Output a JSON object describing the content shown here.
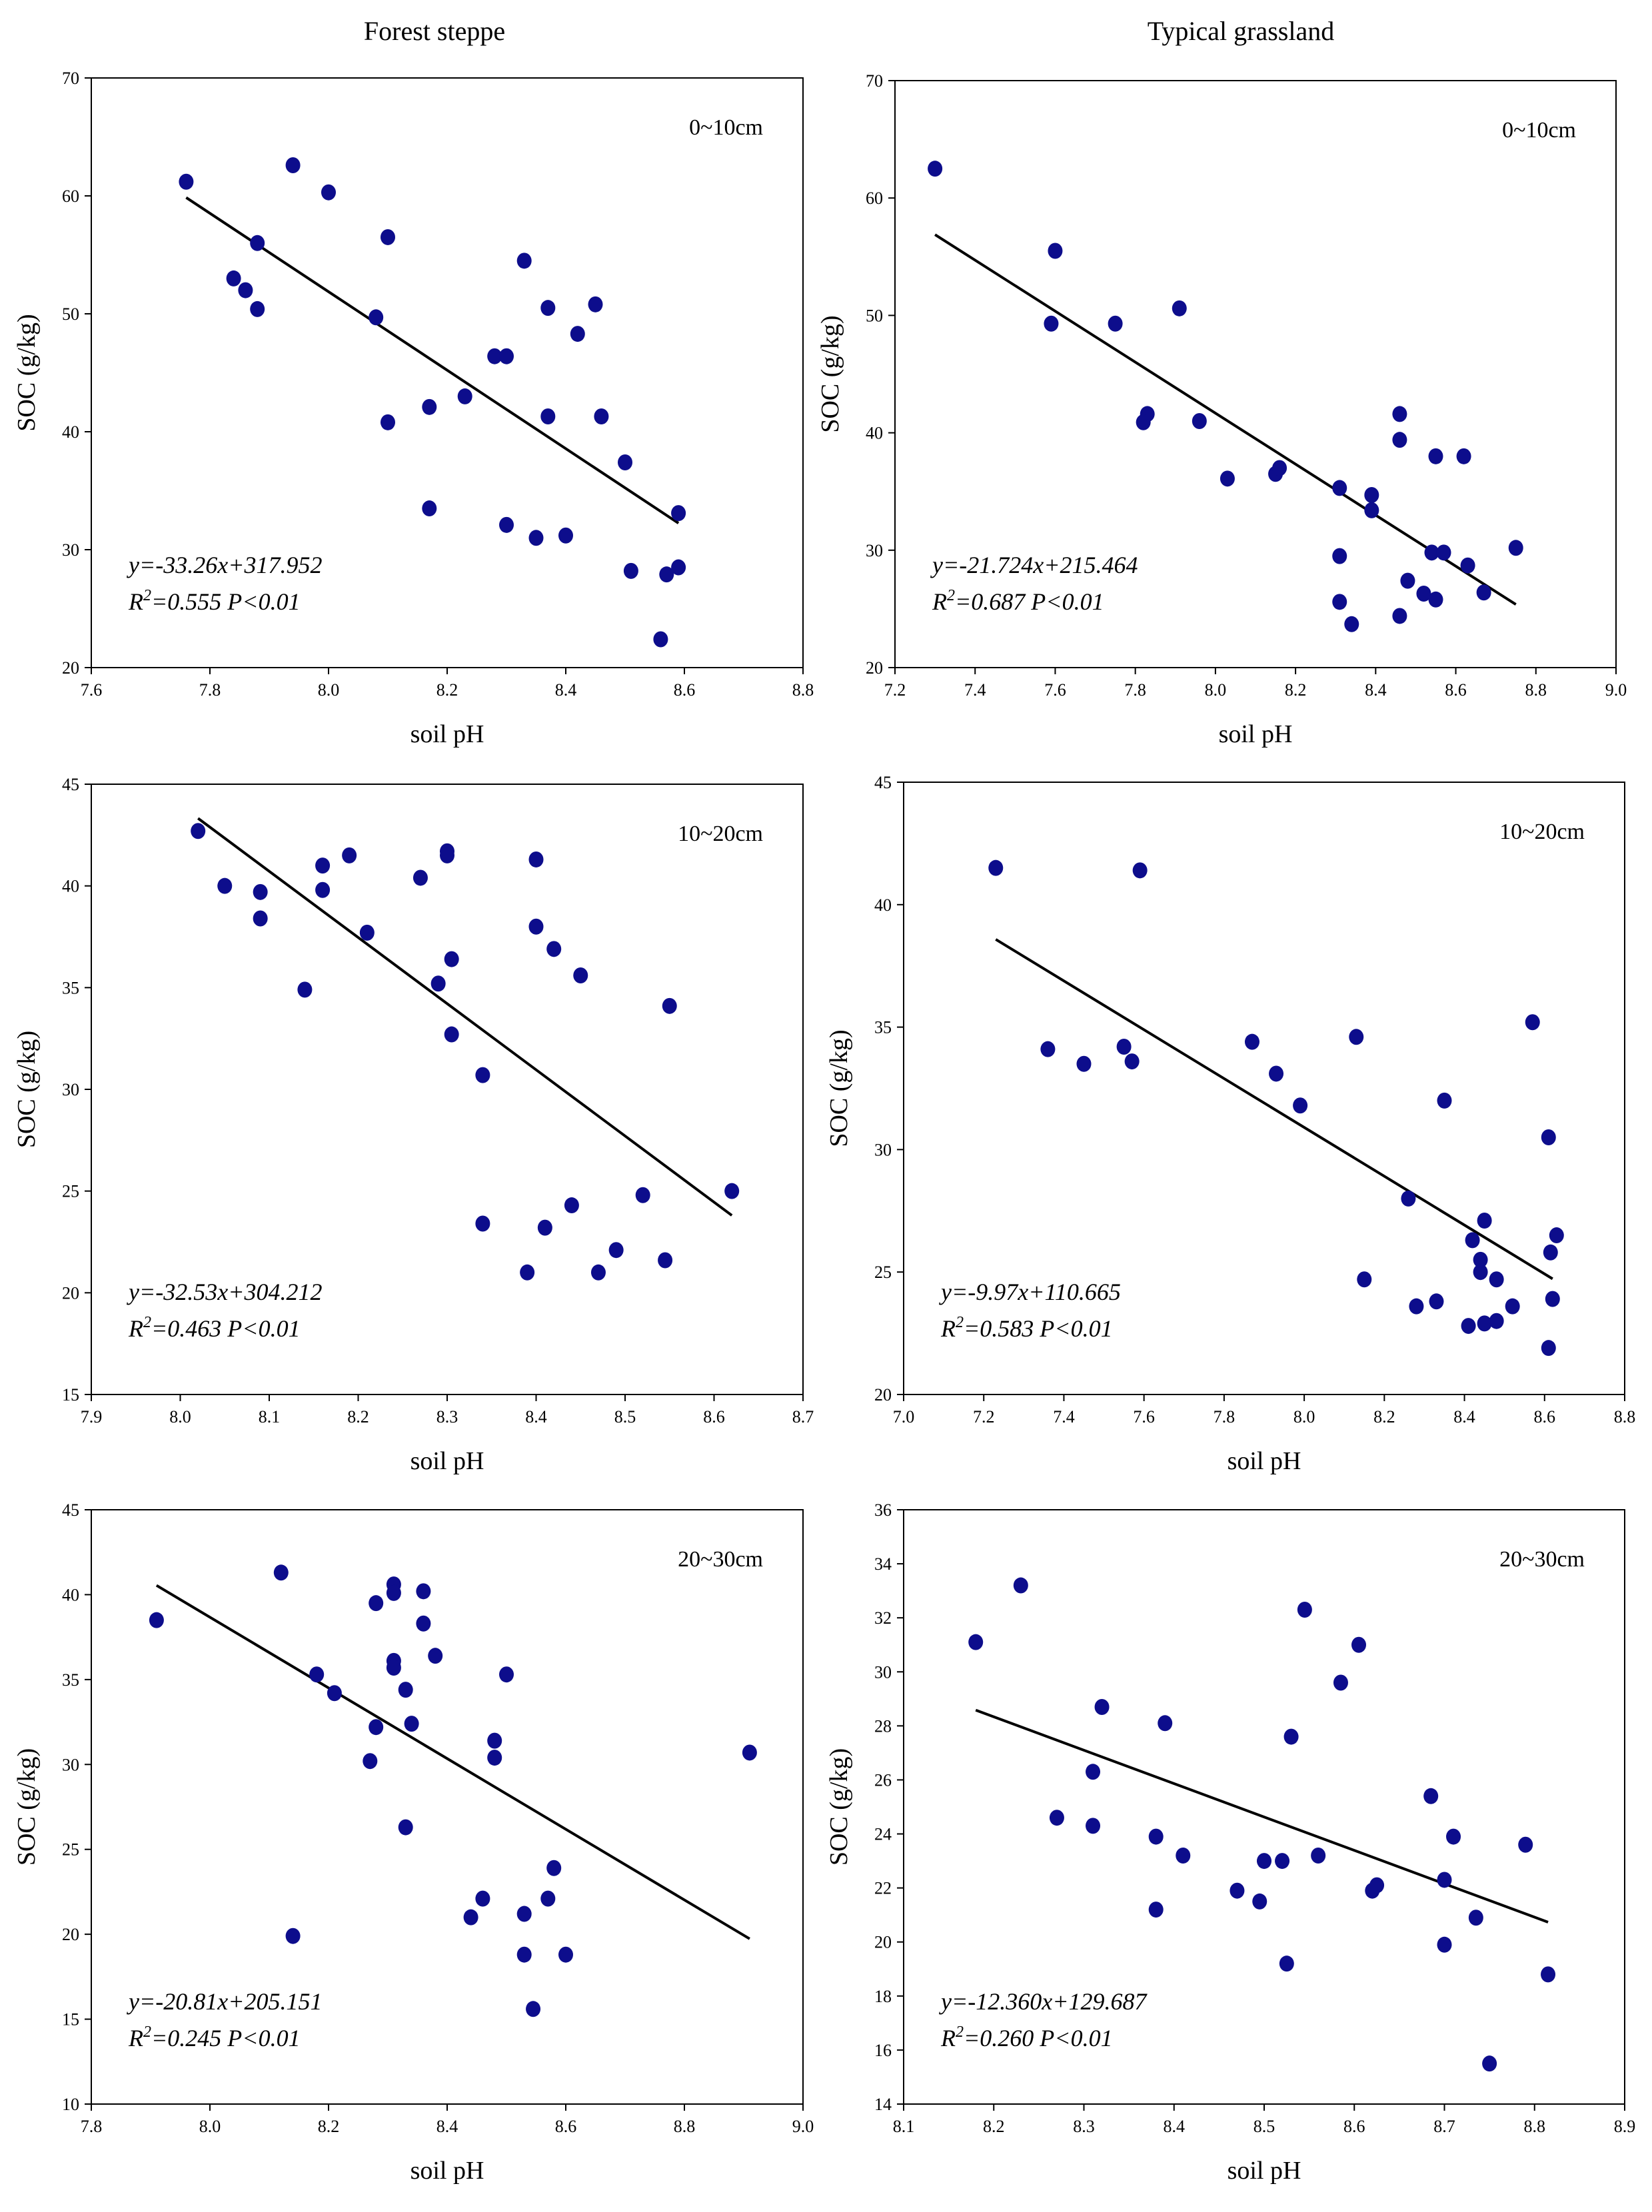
{
  "column_titles": [
    "Forest steppe",
    "Typical grassland"
  ],
  "chart_data": [
    {
      "type": "scatter",
      "title": "Forest steppe",
      "depth": "0~10cm",
      "xlabel": "soil pH",
      "ylabel": "SOC (g/kg)",
      "xlim": [
        7.6,
        8.8
      ],
      "ylim": [
        20,
        70
      ],
      "xticks": [
        "7.6",
        "7.8",
        "8.0",
        "8.2",
        "8.4",
        "8.6",
        "8.8"
      ],
      "yticks": [
        "20",
        "30",
        "40",
        "50",
        "60",
        "70"
      ],
      "equation": "y=-33.26x+317.952",
      "r2_value": "=0.555 P<0.01",
      "fit": {
        "slope": -33.26,
        "intercept": 317.952,
        "x_range": [
          7.76,
          8.59
        ]
      },
      "points": [
        [
          7.76,
          61.2
        ],
        [
          7.84,
          53
        ],
        [
          7.86,
          52
        ],
        [
          7.88,
          50.4
        ],
        [
          7.88,
          56
        ],
        [
          7.94,
          62.6
        ],
        [
          8.0,
          60.3
        ],
        [
          8.08,
          49.7
        ],
        [
          8.1,
          56.5
        ],
        [
          8.1,
          40.8
        ],
        [
          8.17,
          42.1
        ],
        [
          8.17,
          33.5
        ],
        [
          8.23,
          43
        ],
        [
          8.28,
          46.4
        ],
        [
          8.3,
          46.4
        ],
        [
          8.33,
          54.5
        ],
        [
          8.37,
          50.5
        ],
        [
          8.37,
          41.3
        ],
        [
          8.3,
          32.1
        ],
        [
          8.35,
          31
        ],
        [
          8.4,
          31.2
        ],
        [
          8.42,
          48.3
        ],
        [
          8.45,
          50.8
        ],
        [
          8.46,
          41.3
        ],
        [
          8.5,
          37.4
        ],
        [
          8.51,
          28.2
        ],
        [
          8.56,
          22.4
        ],
        [
          8.57,
          27.9
        ],
        [
          8.59,
          33.1
        ],
        [
          8.59,
          28.5
        ]
      ]
    },
    {
      "type": "scatter",
      "title": "Typical grassland",
      "depth": "0~10cm",
      "xlabel": "soil pH",
      "ylabel": "SOC (g/kg)",
      "xlim": [
        7.2,
        9.0
      ],
      "ylim": [
        20,
        70
      ],
      "xticks": [
        "7.2",
        "7.4",
        "7.6",
        "7.8",
        "8.0",
        "8.2",
        "8.4",
        "8.6",
        "8.8",
        "9.0"
      ],
      "yticks": [
        "20",
        "30",
        "40",
        "50",
        "60",
        "70"
      ],
      "equation": "y=-21.724x+215.464",
      "r2_value": "=0.687 P<0.01",
      "fit": {
        "slope": -21.724,
        "intercept": 215.464,
        "x_range": [
          7.3,
          8.75
        ]
      },
      "points": [
        [
          7.3,
          62.5
        ],
        [
          7.6,
          55.5
        ],
        [
          7.59,
          49.3
        ],
        [
          7.75,
          49.3
        ],
        [
          7.91,
          50.6
        ],
        [
          7.83,
          41.6
        ],
        [
          7.82,
          40.9
        ],
        [
          7.96,
          41
        ],
        [
          8.03,
          36.1
        ],
        [
          8.15,
          36.5
        ],
        [
          8.16,
          37
        ],
        [
          8.31,
          35.3
        ],
        [
          8.31,
          29.5
        ],
        [
          8.31,
          25.6
        ],
        [
          8.34,
          23.7
        ],
        [
          8.39,
          34.7
        ],
        [
          8.39,
          33.4
        ],
        [
          8.46,
          41.6
        ],
        [
          8.46,
          39.4
        ],
        [
          8.46,
          24.4
        ],
        [
          8.48,
          27.4
        ],
        [
          8.52,
          26.3
        ],
        [
          8.54,
          29.8
        ],
        [
          8.55,
          38
        ],
        [
          8.55,
          25.8
        ],
        [
          8.57,
          29.8
        ],
        [
          8.62,
          38
        ],
        [
          8.63,
          28.7
        ],
        [
          8.67,
          26.4
        ],
        [
          8.75,
          30.2
        ]
      ]
    },
    {
      "type": "scatter",
      "title": "Forest steppe",
      "depth": "10~20cm",
      "xlabel": "soil pH",
      "ylabel": "SOC (g/kg)",
      "xlim": [
        7.9,
        8.7
      ],
      "ylim": [
        15,
        45
      ],
      "xticks": [
        "7.9",
        "8.0",
        "8.1",
        "8.2",
        "8.3",
        "8.4",
        "8.5",
        "8.6",
        "8.7"
      ],
      "yticks": [
        "15",
        "20",
        "25",
        "30",
        "35",
        "40",
        "45"
      ],
      "equation": "y=-32.53x+304.212",
      "r2_value": "=0.463 P<0.01",
      "fit": {
        "slope": -32.53,
        "intercept": 304.212,
        "x_range": [
          8.02,
          8.62
        ]
      },
      "points": [
        [
          8.02,
          42.7
        ],
        [
          8.05,
          40
        ],
        [
          8.09,
          39.7
        ],
        [
          8.09,
          38.4
        ],
        [
          8.14,
          34.9
        ],
        [
          8.16,
          41
        ],
        [
          8.16,
          39.8
        ],
        [
          8.19,
          41.5
        ],
        [
          8.21,
          37.7
        ],
        [
          8.27,
          40.4
        ],
        [
          8.3,
          41.7
        ],
        [
          8.3,
          41.5
        ],
        [
          8.29,
          35.2
        ],
        [
          8.305,
          36.4
        ],
        [
          8.305,
          32.7
        ],
        [
          8.34,
          30.7
        ],
        [
          8.34,
          23.4
        ],
        [
          8.39,
          21
        ],
        [
          8.4,
          41.3
        ],
        [
          8.4,
          38
        ],
        [
          8.42,
          36.9
        ],
        [
          8.41,
          23.2
        ],
        [
          8.44,
          24.3
        ],
        [
          8.45,
          35.6
        ],
        [
          8.47,
          21
        ],
        [
          8.49,
          22.1
        ],
        [
          8.52,
          24.8
        ],
        [
          8.545,
          21.6
        ],
        [
          8.55,
          34.1
        ],
        [
          8.62,
          25
        ]
      ]
    },
    {
      "type": "scatter",
      "title": "Typical grassland",
      "depth": "10~20cm",
      "xlabel": "soil pH",
      "ylabel": "SOC (g/kg)",
      "xlim": [
        7.0,
        8.8
      ],
      "ylim": [
        20,
        45
      ],
      "xticks": [
        "7.0",
        "7.2",
        "7.4",
        "7.6",
        "7.8",
        "8.0",
        "8.2",
        "8.4",
        "8.6",
        "8.8"
      ],
      "yticks": [
        "20",
        "25",
        "30",
        "35",
        "40",
        "45"
      ],
      "equation": "y=-9.97x+110.665",
      "r2_value": "=0.583 P<0.01",
      "fit": {
        "slope": -9.97,
        "intercept": 110.665,
        "x_range": [
          7.23,
          8.62
        ]
      },
      "points": [
        [
          7.23,
          41.5
        ],
        [
          7.59,
          41.4
        ],
        [
          7.36,
          34.1
        ],
        [
          7.45,
          33.5
        ],
        [
          7.55,
          34.2
        ],
        [
          7.57,
          33.6
        ],
        [
          7.87,
          34.4
        ],
        [
          7.93,
          33.1
        ],
        [
          7.99,
          31.8
        ],
        [
          8.13,
          34.6
        ],
        [
          8.15,
          24.7
        ],
        [
          8.26,
          28
        ],
        [
          8.28,
          23.6
        ],
        [
          8.33,
          23.8
        ],
        [
          8.35,
          32
        ],
        [
          8.41,
          22.8
        ],
        [
          8.42,
          26.3
        ],
        [
          8.44,
          25
        ],
        [
          8.44,
          25.5
        ],
        [
          8.45,
          27.1
        ],
        [
          8.45,
          22.9
        ],
        [
          8.48,
          24.7
        ],
        [
          8.48,
          23
        ],
        [
          8.52,
          23.6
        ],
        [
          8.57,
          35.2
        ],
        [
          8.61,
          30.5
        ],
        [
          8.615,
          25.8
        ],
        [
          8.62,
          23.9
        ],
        [
          8.63,
          26.5
        ],
        [
          8.61,
          21.9
        ]
      ]
    },
    {
      "type": "scatter",
      "title": "Forest steppe",
      "depth": "20~30cm",
      "xlabel": "soil pH",
      "ylabel": "SOC (g/kg)",
      "xlim": [
        7.8,
        9.0
      ],
      "ylim": [
        10,
        45
      ],
      "xticks": [
        "7.8",
        "8.0",
        "8.2",
        "8.4",
        "8.6",
        "8.8",
        "9.0"
      ],
      "yticks": [
        "10",
        "15",
        "20",
        "25",
        "30",
        "35",
        "40",
        "45"
      ],
      "equation": "y=-20.81x+205.151",
      "r2_value": "=0.245 P<0.01",
      "fit": {
        "slope": -20.81,
        "intercept": 205.151,
        "x_range": [
          7.91,
          8.91
        ]
      },
      "points": [
        [
          7.91,
          38.5
        ],
        [
          8.12,
          41.3
        ],
        [
          8.14,
          19.9
        ],
        [
          8.18,
          35.3
        ],
        [
          8.21,
          34.2
        ],
        [
          8.28,
          39.5
        ],
        [
          8.27,
          30.2
        ],
        [
          8.28,
          32.2
        ],
        [
          8.31,
          40.6
        ],
        [
          8.31,
          40.1
        ],
        [
          8.31,
          36.1
        ],
        [
          8.31,
          35.7
        ],
        [
          8.33,
          34.4
        ],
        [
          8.33,
          26.3
        ],
        [
          8.34,
          32.4
        ],
        [
          8.36,
          40.2
        ],
        [
          8.36,
          38.3
        ],
        [
          8.38,
          36.4
        ],
        [
          8.44,
          21
        ],
        [
          8.46,
          22.1
        ],
        [
          8.48,
          30.4
        ],
        [
          8.48,
          31.4
        ],
        [
          8.5,
          35.3
        ],
        [
          8.53,
          21.2
        ],
        [
          8.53,
          18.8
        ],
        [
          8.545,
          15.6
        ],
        [
          8.57,
          22.1
        ],
        [
          8.58,
          23.9
        ],
        [
          8.6,
          18.8
        ],
        [
          8.91,
          30.7
        ]
      ]
    },
    {
      "type": "scatter",
      "title": "Typical grassland",
      "depth": "20~30cm",
      "xlabel": "soil pH",
      "ylabel": "SOC (g/kg)",
      "xlim": [
        8.1,
        8.9
      ],
      "ylim": [
        14,
        36
      ],
      "xticks": [
        "8.1",
        "8.2",
        "8.3",
        "8.4",
        "8.5",
        "8.6",
        "8.7",
        "8.8",
        "8.9"
      ],
      "yticks": [
        "14",
        "16",
        "18",
        "20",
        "22",
        "24",
        "26",
        "28",
        "30",
        "32",
        "34",
        "36"
      ],
      "equation": "y=-12.360x+129.687",
      "r2_value": "=0.260 P<0.01",
      "fit": {
        "slope": -12.36,
        "intercept": 129.687,
        "x_range": [
          8.18,
          8.815
        ]
      },
      "points": [
        [
          8.18,
          31.1
        ],
        [
          8.23,
          33.2
        ],
        [
          8.27,
          24.6
        ],
        [
          8.31,
          26.3
        ],
        [
          8.31,
          24.3
        ],
        [
          8.32,
          28.7
        ],
        [
          8.38,
          23.9
        ],
        [
          8.38,
          21.2
        ],
        [
          8.39,
          28.1
        ],
        [
          8.41,
          23.2
        ],
        [
          8.47,
          21.9
        ],
        [
          8.495,
          21.5
        ],
        [
          8.5,
          23
        ],
        [
          8.52,
          23
        ],
        [
          8.525,
          19.2
        ],
        [
          8.53,
          27.6
        ],
        [
          8.545,
          32.3
        ],
        [
          8.56,
          23.2
        ],
        [
          8.585,
          29.6
        ],
        [
          8.605,
          31
        ],
        [
          8.62,
          21.9
        ],
        [
          8.625,
          22.1
        ],
        [
          8.685,
          25.4
        ],
        [
          8.7,
          22.3
        ],
        [
          8.7,
          19.9
        ],
        [
          8.71,
          23.9
        ],
        [
          8.735,
          20.9
        ],
        [
          8.75,
          15.5
        ],
        [
          8.79,
          23.6
        ],
        [
          8.815,
          18.8
        ]
      ]
    }
  ]
}
